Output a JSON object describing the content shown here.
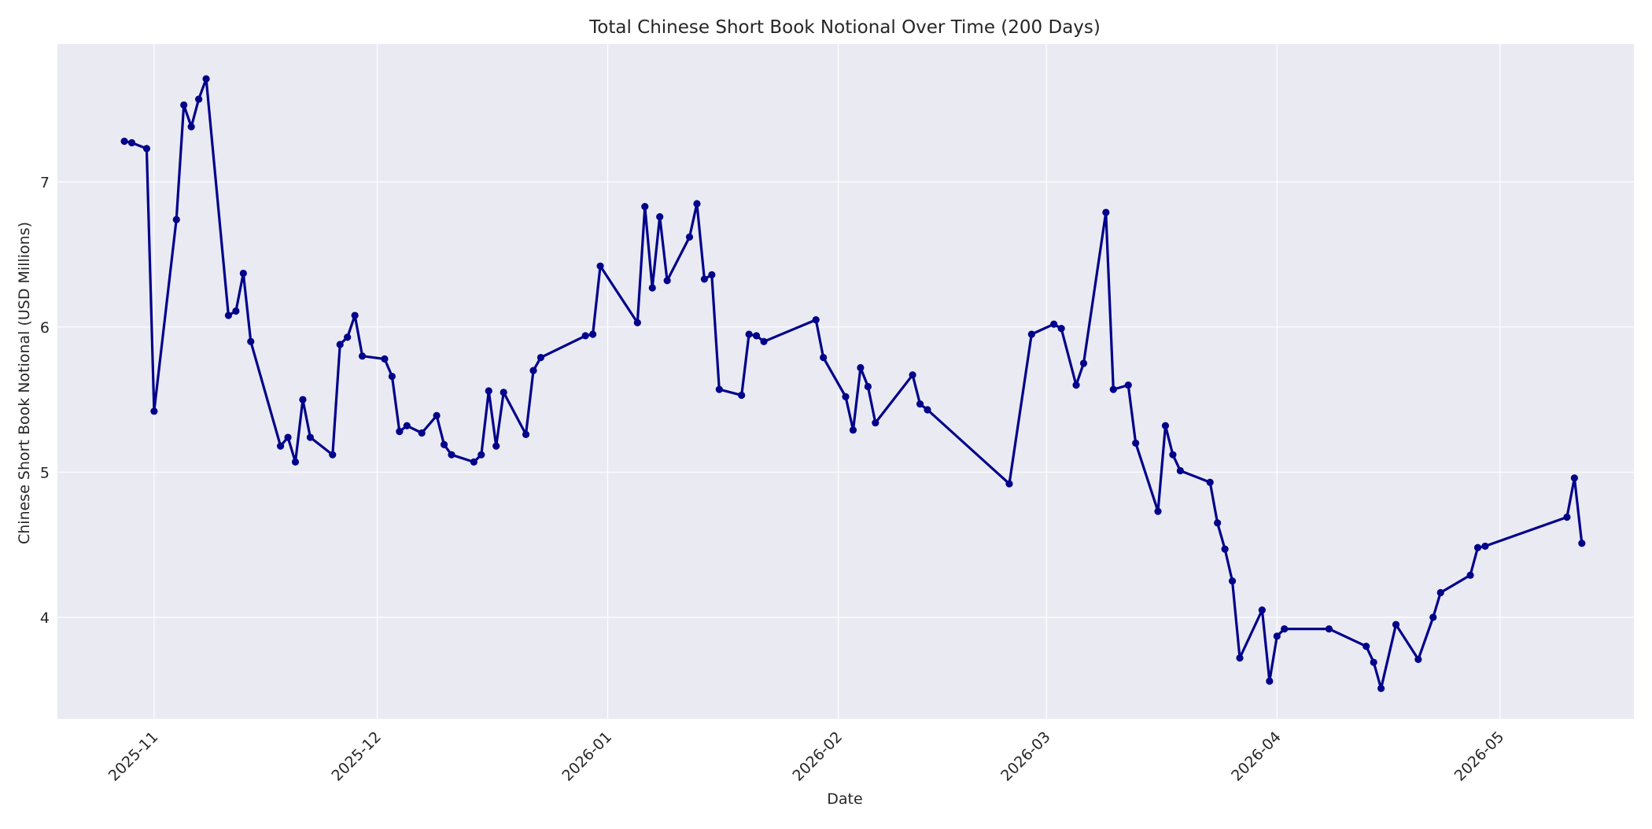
{
  "chart_data": {
    "type": "line",
    "title": "Total Chinese Short Book Notional Over Time (200 Days)",
    "xlabel": "Date",
    "ylabel": "Chinese Short Book Notional (USD Millions)",
    "x_tick_labels": [
      "2025-11",
      "2025-12",
      "2026-01",
      "2026-02",
      "2026-03",
      "2026-04",
      "2026-05"
    ],
    "y_tick_labels": [
      "4",
      "5",
      "6",
      "7"
    ],
    "xlim": [
      "2025-10-19",
      "2026-05-19"
    ],
    "ylim": [
      3.3,
      7.95
    ],
    "grid": true,
    "line_color": "#00008b",
    "background_color": "#eaeaf2",
    "series": [
      {
        "x": [
          "2025-10-28",
          "2025-10-29",
          "2025-10-31",
          "2025-11-01",
          "2025-11-04",
          "2025-11-05",
          "2025-11-06",
          "2025-11-07",
          "2025-11-08",
          "2025-11-11",
          "2025-11-12",
          "2025-11-13",
          "2025-11-14",
          "2025-11-18",
          "2025-11-19",
          "2025-11-20",
          "2025-11-21",
          "2025-11-22",
          "2025-11-25",
          "2025-11-26",
          "2025-11-27",
          "2025-11-28",
          "2025-11-29",
          "2025-12-02",
          "2025-12-03",
          "2025-12-04",
          "2025-12-05",
          "2025-12-07",
          "2025-12-09",
          "2025-12-10",
          "2025-12-11",
          "2025-12-14",
          "2025-12-15",
          "2025-12-16",
          "2025-12-17",
          "2025-12-18",
          "2025-12-21",
          "2025-12-22",
          "2025-12-23",
          "2025-12-29",
          "2025-12-30",
          "2025-12-31",
          "2026-01-05",
          "2026-01-06",
          "2026-01-07",
          "2026-01-08",
          "2026-01-09",
          "2026-01-12",
          "2026-01-13",
          "2026-01-14",
          "2026-01-15",
          "2026-01-16",
          "2026-01-19",
          "2026-01-20",
          "2026-01-21",
          "2026-01-22",
          "2026-01-29",
          "2026-01-30",
          "2026-02-02",
          "2026-02-03",
          "2026-02-04",
          "2026-02-05",
          "2026-02-06",
          "2026-02-11",
          "2026-02-12",
          "2026-02-13",
          "2026-02-24",
          "2026-02-27",
          "2026-03-02",
          "2026-03-03",
          "2026-03-05",
          "2026-03-06",
          "2026-03-09",
          "2026-03-10",
          "2026-03-12",
          "2026-03-13",
          "2026-03-16",
          "2026-03-17",
          "2026-03-18",
          "2026-03-19",
          "2026-03-23",
          "2026-03-24",
          "2026-03-25",
          "2026-03-26",
          "2026-03-27",
          "2026-03-30",
          "2026-03-31",
          "2026-04-01",
          "2026-04-02",
          "2026-04-08",
          "2026-04-13",
          "2026-04-14",
          "2026-04-15",
          "2026-04-17",
          "2026-04-20",
          "2026-04-22",
          "2026-04-23",
          "2026-04-27",
          "2026-04-28",
          "2026-04-29",
          "2026-05-10",
          "2026-05-11",
          "2026-05-12"
        ],
        "y": [
          7.28,
          7.27,
          7.23,
          5.42,
          6.74,
          7.53,
          7.38,
          7.57,
          7.71,
          6.08,
          6.11,
          6.37,
          5.9,
          5.18,
          5.24,
          5.07,
          5.5,
          5.24,
          5.12,
          5.88,
          5.93,
          6.08,
          5.8,
          5.78,
          5.66,
          5.28,
          5.32,
          5.27,
          5.39,
          5.19,
          5.12,
          5.07,
          5.12,
          5.56,
          5.18,
          5.55,
          5.26,
          5.7,
          5.79,
          5.94,
          5.95,
          6.42,
          6.03,
          6.83,
          6.27,
          6.76,
          6.32,
          6.62,
          6.85,
          6.33,
          6.36,
          5.57,
          5.53,
          5.95,
          5.94,
          5.9,
          6.05,
          5.79,
          5.52,
          5.29,
          5.72,
          5.59,
          5.34,
          5.67,
          5.47,
          5.43,
          4.92,
          5.95,
          6.02,
          5.99,
          5.6,
          5.75,
          6.79,
          5.57,
          5.6,
          5.2,
          4.73,
          5.32,
          5.12,
          5.01,
          4.93,
          4.65,
          4.47,
          4.25,
          3.72,
          4.05,
          3.56,
          3.87,
          3.92,
          3.92,
          3.8,
          3.69,
          3.51,
          3.95,
          3.71,
          4.0,
          4.17,
          4.29,
          4.48,
          4.49,
          4.69,
          4.96,
          4.51
        ]
      }
    ]
  }
}
